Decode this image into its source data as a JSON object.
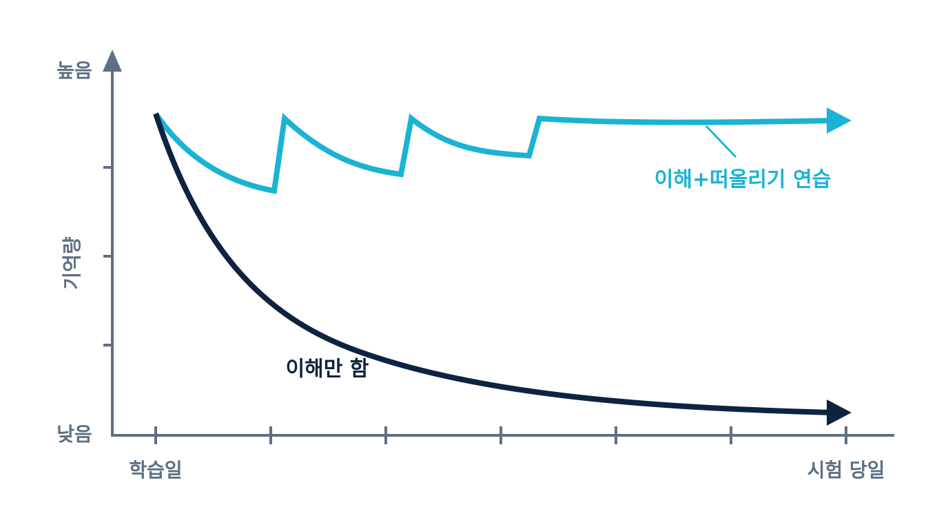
{
  "y_axis": {
    "label": "기억량",
    "high": "높음",
    "low": "낮음"
  },
  "x_axis": {
    "start": "학습일",
    "end": "시험 당일"
  },
  "curves": {
    "practice": "이해+떠올리기 연습",
    "understand_only": "이해만 함"
  }
}
